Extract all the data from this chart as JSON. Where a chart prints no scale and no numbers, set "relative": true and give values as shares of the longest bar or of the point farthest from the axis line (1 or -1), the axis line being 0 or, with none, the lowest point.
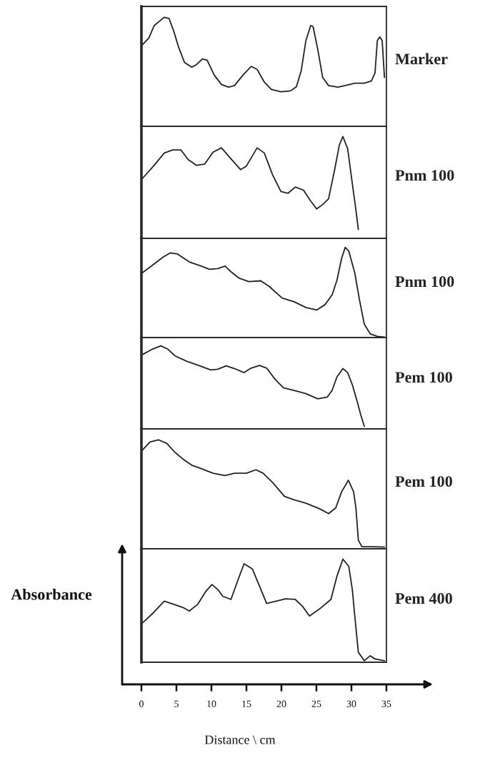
{
  "chart_data": [
    {
      "type": "line",
      "relative": true,
      "xlim": [
        0,
        35
      ],
      "tick_labels": false,
      "x": [
        0.1,
        1.05,
        1.84,
        2.42,
        3.27,
        3.95,
        4.62,
        5.31,
        6.15,
        7.17,
        7.86,
        8.7,
        9.39,
        10.41,
        11.43,
        12.45,
        13.3,
        14.49,
        15.68,
        16.53,
        17.55,
        18.57,
        19.93,
        21.3,
        22.14,
        22.83,
        23.5,
        24.18,
        24.52,
        25.2,
        25.89,
        26.73,
        28.09,
        29.11,
        30.48,
        31.84,
        32.86,
        33.37,
        33.7,
        34.05,
        34.39,
        34.72
      ],
      "series": [
        {
          "name": "Marker",
          "color": "#222222",
          "values": [
            0.745,
            0.809,
            0.925,
            0.957,
            1.0,
            0.989,
            0.873,
            0.726,
            0.586,
            0.543,
            0.565,
            0.618,
            0.607,
            0.469,
            0.384,
            0.359,
            0.374,
            0.469,
            0.55,
            0.522,
            0.406,
            0.338,
            0.317,
            0.325,
            0.363,
            0.511,
            0.788,
            0.925,
            0.915,
            0.703,
            0.448,
            0.374,
            0.359,
            0.374,
            0.395,
            0.395,
            0.416,
            0.49,
            0.788,
            0.82,
            0.788,
            0.448
          ]
        }
      ]
    },
    {
      "type": "line",
      "relative": true,
      "xlim": [
        0,
        35
      ],
      "tick_labels": false,
      "x": [
        0.1,
        1.73,
        3.27,
        4.46,
        5.64,
        6.66,
        7.86,
        9.05,
        10.23,
        11.43,
        12.62,
        14.15,
        15.0,
        16.53,
        17.55,
        18.74,
        19.93,
        20.95,
        21.97,
        23.16,
        24.18,
        25.03,
        25.89,
        26.73,
        27.58,
        28.27,
        28.78,
        29.46,
        30.13,
        30.64,
        30.99
      ],
      "series": [
        {
          "name": "Pnm 100",
          "color": "#222222",
          "values": [
            0.585,
            0.71,
            0.838,
            0.868,
            0.868,
            0.774,
            0.717,
            0.73,
            0.846,
            0.889,
            0.794,
            0.675,
            0.71,
            0.889,
            0.838,
            0.623,
            0.46,
            0.443,
            0.504,
            0.473,
            0.366,
            0.289,
            0.332,
            0.388,
            0.666,
            0.915,
            1.0,
            0.88,
            0.537,
            0.28,
            0.087
          ]
        }
      ]
    },
    {
      "type": "line",
      "relative": true,
      "xlim": [
        0,
        35
      ],
      "tick_labels": false,
      "x": [
        0.1,
        1.73,
        3.09,
        4.11,
        5.13,
        6.84,
        8.54,
        9.72,
        10.92,
        11.94,
        12.79,
        13.98,
        15.34,
        17.04,
        18.24,
        20.1,
        21.81,
        23.5,
        25.03,
        26.22,
        27.24,
        27.93,
        28.6,
        29.11,
        29.62,
        30.48,
        31.15,
        31.84,
        32.68,
        33.7,
        34.72
      ],
      "series": [
        {
          "name": "Pnm 100",
          "color": "#222222",
          "values": [
            0.716,
            0.811,
            0.892,
            0.938,
            0.927,
            0.838,
            0.792,
            0.757,
            0.765,
            0.792,
            0.73,
            0.657,
            0.621,
            0.629,
            0.568,
            0.438,
            0.397,
            0.333,
            0.305,
            0.365,
            0.473,
            0.635,
            0.878,
            1.0,
            0.959,
            0.716,
            0.418,
            0.148,
            0.041,
            0.013,
            0.005
          ]
        }
      ]
    },
    {
      "type": "line",
      "relative": true,
      "xlim": [
        0,
        35
      ],
      "tick_labels": false,
      "x": [
        0.1,
        1.56,
        2.76,
        3.78,
        4.8,
        6.5,
        8.19,
        9.9,
        10.92,
        12.11,
        13.3,
        14.66,
        15.68,
        16.87,
        17.89,
        19.08,
        20.28,
        21.81,
        23.5,
        25.2,
        26.56,
        27.24,
        27.93,
        28.78,
        29.46,
        30.13,
        30.82,
        31.33,
        31.84
      ],
      "series": [
        {
          "name": "Pem 100",
          "color": "#222222",
          "values": [
            0.893,
            0.96,
            1.0,
            0.96,
            0.879,
            0.813,
            0.764,
            0.71,
            0.718,
            0.759,
            0.726,
            0.678,
            0.732,
            0.764,
            0.732,
            0.598,
            0.496,
            0.464,
            0.424,
            0.362,
            0.384,
            0.464,
            0.625,
            0.726,
            0.678,
            0.531,
            0.33,
            0.169,
            0.03
          ]
        }
      ]
    },
    {
      "type": "line",
      "relative": true,
      "xlim": [
        0,
        35
      ],
      "tick_labels": false,
      "x": [
        0.1,
        1.22,
        2.42,
        3.6,
        4.8,
        5.99,
        7.17,
        8.54,
        10.23,
        11.94,
        13.3,
        15.0,
        16.36,
        17.38,
        18.74,
        20.44,
        21.81,
        23.5,
        25.54,
        26.73,
        27.76,
        28.6,
        29.56,
        30.31,
        30.64,
        30.99,
        31.5,
        33.03,
        34.72
      ],
      "series": [
        {
          "name": "Pem 100",
          "color": "#222222",
          "values": [
            0.903,
            0.979,
            1.0,
            0.968,
            0.884,
            0.82,
            0.767,
            0.736,
            0.693,
            0.672,
            0.693,
            0.693,
            0.725,
            0.693,
            0.608,
            0.481,
            0.449,
            0.418,
            0.364,
            0.322,
            0.375,
            0.523,
            0.629,
            0.523,
            0.375,
            0.078,
            0.019,
            0.019,
            0.015
          ]
        }
      ]
    },
    {
      "type": "line",
      "relative": true,
      "xlim": [
        0,
        35
      ],
      "xticks": [
        0,
        5,
        10,
        15,
        20,
        25,
        30,
        35
      ],
      "tick_labels": "x",
      "xlabel": "Distance \\ cm",
      "ylabel": "Absorbance",
      "x": [
        0.1,
        1.73,
        3.27,
        4.62,
        5.99,
        6.84,
        8.03,
        9.21,
        10.07,
        10.92,
        11.6,
        12.79,
        13.81,
        14.66,
        15.85,
        16.87,
        17.89,
        19.26,
        20.61,
        21.97,
        22.99,
        24.01,
        25.38,
        27.07,
        27.93,
        28.78,
        29.62,
        30.13,
        30.48,
        30.99,
        31.84,
        32.68,
        33.37,
        34.72
      ],
      "series": [
        {
          "name": "Pem 400",
          "color": "#222222",
          "values": [
            0.378,
            0.481,
            0.592,
            0.561,
            0.529,
            0.496,
            0.561,
            0.688,
            0.753,
            0.705,
            0.64,
            0.609,
            0.801,
            0.955,
            0.904,
            0.737,
            0.57,
            0.592,
            0.615,
            0.609,
            0.544,
            0.448,
            0.513,
            0.609,
            0.833,
            1.0,
            0.929,
            0.705,
            0.448,
            0.096,
            0.015,
            0.063,
            0.032,
            0.015
          ]
        }
      ]
    }
  ]
}
